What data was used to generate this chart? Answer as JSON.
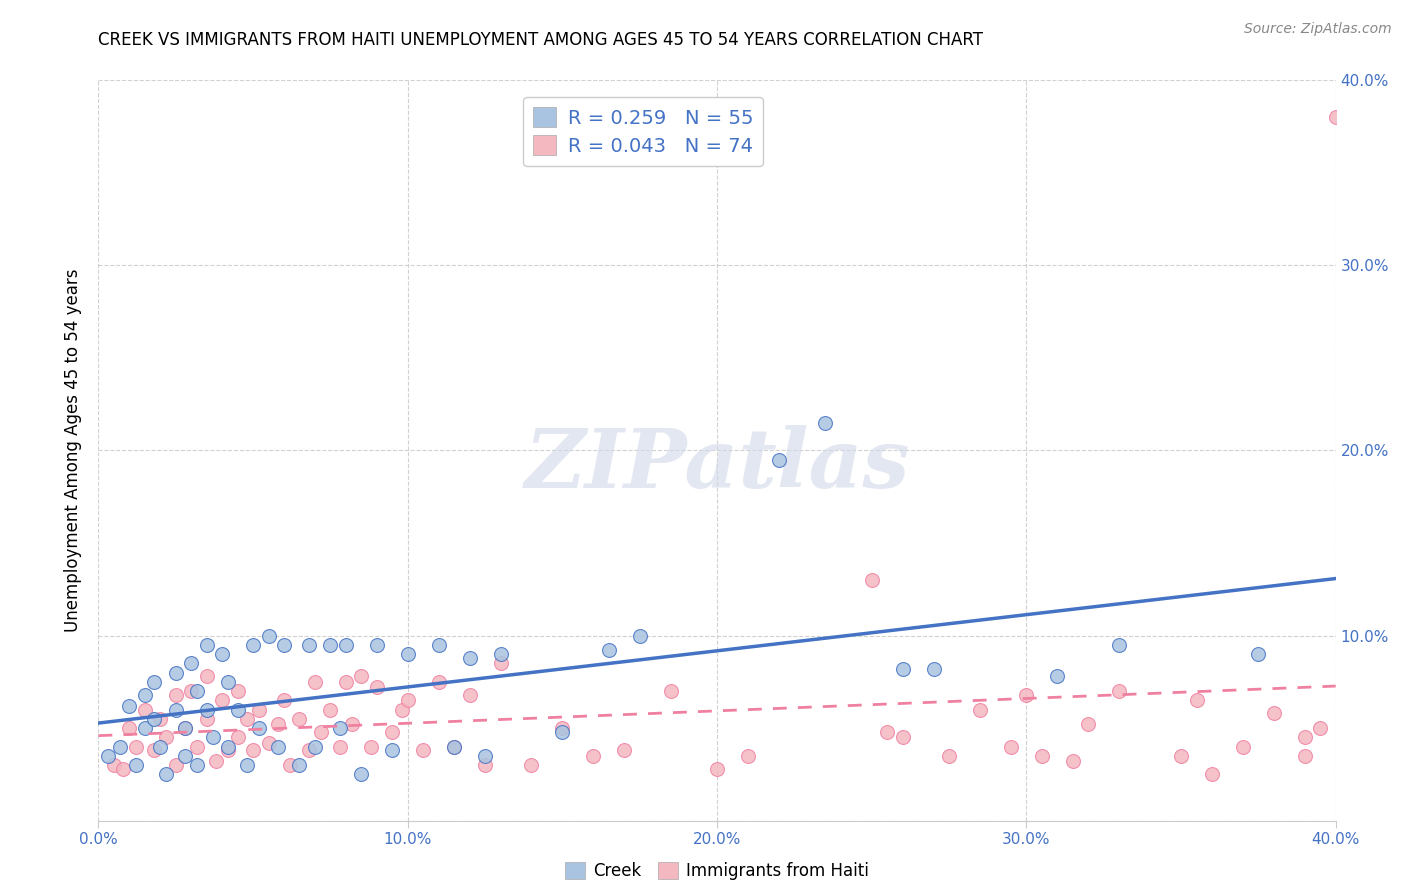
{
  "title": "CREEK VS IMMIGRANTS FROM HAITI UNEMPLOYMENT AMONG AGES 45 TO 54 YEARS CORRELATION CHART",
  "source": "Source: ZipAtlas.com",
  "ylabel": "Unemployment Among Ages 45 to 54 years",
  "xlim": [
    0.0,
    0.4
  ],
  "ylim": [
    0.0,
    0.4
  ],
  "xticks": [
    0.0,
    0.1,
    0.2,
    0.3,
    0.4
  ],
  "yticks": [
    0.0,
    0.1,
    0.2,
    0.3,
    0.4
  ],
  "xticklabels": [
    "0.0%",
    "10.0%",
    "20.0%",
    "30.0%",
    "40.0%"
  ],
  "yticklabels_right": [
    "",
    "10.0%",
    "20.0%",
    "30.0%",
    "40.0%"
  ],
  "grid_color": "#cccccc",
  "background_color": "#ffffff",
  "creek_color": "#a8c4e0",
  "haiti_color": "#f4b8c1",
  "creek_line_color": "#4472c4",
  "haiti_line_color": "#f080a0",
  "creek_R": 0.259,
  "creek_N": 55,
  "haiti_R": 0.043,
  "haiti_N": 74,
  "watermark": "ZIPatlas",
  "creek_scatter_x": [
    0.003,
    0.007,
    0.01,
    0.012,
    0.015,
    0.015,
    0.018,
    0.018,
    0.02,
    0.022,
    0.025,
    0.025,
    0.028,
    0.028,
    0.03,
    0.032,
    0.032,
    0.035,
    0.035,
    0.037,
    0.04,
    0.042,
    0.042,
    0.045,
    0.048,
    0.05,
    0.052,
    0.055,
    0.058,
    0.06,
    0.065,
    0.068,
    0.07,
    0.075,
    0.078,
    0.08,
    0.085,
    0.09,
    0.095,
    0.1,
    0.11,
    0.115,
    0.12,
    0.125,
    0.13,
    0.15,
    0.165,
    0.175,
    0.22,
    0.235,
    0.26,
    0.27,
    0.31,
    0.33,
    0.375
  ],
  "creek_scatter_y": [
    0.035,
    0.04,
    0.062,
    0.03,
    0.068,
    0.05,
    0.075,
    0.055,
    0.04,
    0.025,
    0.08,
    0.06,
    0.05,
    0.035,
    0.085,
    0.07,
    0.03,
    0.095,
    0.06,
    0.045,
    0.09,
    0.075,
    0.04,
    0.06,
    0.03,
    0.095,
    0.05,
    0.1,
    0.04,
    0.095,
    0.03,
    0.095,
    0.04,
    0.095,
    0.05,
    0.095,
    0.025,
    0.095,
    0.038,
    0.09,
    0.095,
    0.04,
    0.088,
    0.035,
    0.09,
    0.048,
    0.092,
    0.1,
    0.195,
    0.215,
    0.082,
    0.082,
    0.078,
    0.095,
    0.09
  ],
  "haiti_scatter_x": [
    0.005,
    0.008,
    0.01,
    0.012,
    0.015,
    0.018,
    0.02,
    0.022,
    0.025,
    0.025,
    0.028,
    0.03,
    0.032,
    0.035,
    0.035,
    0.038,
    0.04,
    0.042,
    0.045,
    0.045,
    0.048,
    0.05,
    0.052,
    0.055,
    0.058,
    0.06,
    0.062,
    0.065,
    0.068,
    0.07,
    0.072,
    0.075,
    0.078,
    0.08,
    0.082,
    0.085,
    0.088,
    0.09,
    0.095,
    0.098,
    0.1,
    0.105,
    0.11,
    0.115,
    0.12,
    0.125,
    0.13,
    0.14,
    0.15,
    0.16,
    0.17,
    0.185,
    0.2,
    0.21,
    0.25,
    0.26,
    0.3,
    0.305,
    0.32,
    0.35,
    0.355,
    0.36,
    0.37,
    0.255,
    0.275,
    0.285,
    0.295,
    0.315,
    0.33,
    0.38,
    0.39,
    0.39,
    0.395,
    0.4
  ],
  "haiti_scatter_y": [
    0.03,
    0.028,
    0.05,
    0.04,
    0.06,
    0.038,
    0.055,
    0.045,
    0.068,
    0.03,
    0.05,
    0.07,
    0.04,
    0.078,
    0.055,
    0.032,
    0.065,
    0.038,
    0.07,
    0.045,
    0.055,
    0.038,
    0.06,
    0.042,
    0.052,
    0.065,
    0.03,
    0.055,
    0.038,
    0.075,
    0.048,
    0.06,
    0.04,
    0.075,
    0.052,
    0.078,
    0.04,
    0.072,
    0.048,
    0.06,
    0.065,
    0.038,
    0.075,
    0.04,
    0.068,
    0.03,
    0.085,
    0.03,
    0.05,
    0.035,
    0.038,
    0.07,
    0.028,
    0.035,
    0.13,
    0.045,
    0.068,
    0.035,
    0.052,
    0.035,
    0.065,
    0.025,
    0.04,
    0.048,
    0.035,
    0.06,
    0.04,
    0.032,
    0.07,
    0.058,
    0.045,
    0.035,
    0.05,
    0.38
  ]
}
